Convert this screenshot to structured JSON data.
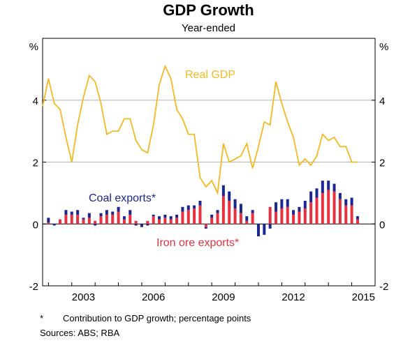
{
  "title": "GDP Growth",
  "subtitle": "Year-ended",
  "footnote_mark": "*",
  "footnote_text": "Contribution to GDP growth; percentage points",
  "sources": "Sources:   ABS; RBA",
  "colors": {
    "real_gdp": "#f5b921",
    "coal": "#1c2690",
    "iron_ore": "#e8303f"
  },
  "chart_data": {
    "type": "line+stacked-bar",
    "ylabel_left": "%",
    "ylabel_right": "%",
    "ylim": [
      -2,
      6
    ],
    "yticks": [
      -2,
      0,
      2,
      4
    ],
    "xlim": [
      2001.75,
      2016.0
    ],
    "xticks": [
      2003,
      2006,
      2009,
      2012,
      2015
    ],
    "xtick_labels": [
      "2003",
      "2006",
      "2009",
      "2012",
      "2015"
    ],
    "grid": "horizontal at 2 and 4",
    "series": [
      {
        "name": "Real GDP",
        "type": "line",
        "x": [
          2001.75,
          2002.0,
          2002.25,
          2002.5,
          2002.75,
          2003.0,
          2003.25,
          2003.5,
          2003.75,
          2004.0,
          2004.25,
          2004.5,
          2004.75,
          2005.0,
          2005.25,
          2005.5,
          2005.75,
          2006.0,
          2006.25,
          2006.5,
          2006.75,
          2007.0,
          2007.25,
          2007.5,
          2007.75,
          2008.0,
          2008.25,
          2008.5,
          2008.75,
          2009.0,
          2009.25,
          2009.5,
          2009.75,
          2010.0,
          2010.25,
          2010.5,
          2010.75,
          2011.0,
          2011.25,
          2011.5,
          2011.75,
          2012.0,
          2012.25,
          2012.5,
          2012.75,
          2013.0,
          2013.25,
          2013.5,
          2013.75,
          2014.0,
          2014.25,
          2014.5,
          2014.75,
          2015.0,
          2015.25
        ],
        "values": [
          3.8,
          4.7,
          3.9,
          3.7,
          2.8,
          2.0,
          3.2,
          4.1,
          4.8,
          4.6,
          3.9,
          2.9,
          3.0,
          3.0,
          3.4,
          3.4,
          2.7,
          2.4,
          2.3,
          3.2,
          4.5,
          5.1,
          4.7,
          3.7,
          3.4,
          2.9,
          2.9,
          1.5,
          1.2,
          1.4,
          1.0,
          2.6,
          2.0,
          2.1,
          2.2,
          2.6,
          1.8,
          2.5,
          3.3,
          3.2,
          4.6,
          3.9,
          3.3,
          2.8,
          1.9,
          2.1,
          1.9,
          2.2,
          2.9,
          2.7,
          2.8,
          2.5,
          2.5,
          2.0,
          2.0
        ]
      },
      {
        "name": "Coal exports*",
        "type": "bar",
        "x": [
          2002.0,
          2002.25,
          2002.5,
          2002.75,
          2003.0,
          2003.25,
          2003.5,
          2003.75,
          2004.0,
          2004.25,
          2004.5,
          2004.75,
          2005.0,
          2005.25,
          2005.5,
          2005.75,
          2006.0,
          2006.25,
          2006.5,
          2006.75,
          2007.0,
          2007.25,
          2007.5,
          2007.75,
          2008.0,
          2008.25,
          2008.5,
          2008.75,
          2009.0,
          2009.25,
          2009.5,
          2009.75,
          2010.0,
          2010.25,
          2010.5,
          2010.75,
          2011.0,
          2011.25,
          2011.5,
          2011.75,
          2012.0,
          2012.25,
          2012.5,
          2012.75,
          2013.0,
          2013.25,
          2013.5,
          2013.75,
          2014.0,
          2014.25,
          2014.5,
          2014.75,
          2015.0,
          2015.25
        ],
        "values": [
          0.15,
          -0.05,
          0.0,
          0.15,
          0.1,
          0.15,
          0.05,
          0.15,
          -0.05,
          0.1,
          0.15,
          0.1,
          0.15,
          0.1,
          0.15,
          -0.05,
          -0.1,
          -0.05,
          0.05,
          0.1,
          0.1,
          0.1,
          0.1,
          0.15,
          0.15,
          0.1,
          0.15,
          -0.05,
          0.1,
          0.1,
          0.35,
          0.3,
          0.3,
          0.3,
          0.15,
          0.1,
          -0.4,
          -0.35,
          -0.15,
          0.3,
          0.3,
          0.25,
          0.15,
          0.15,
          0.25,
          0.35,
          0.3,
          0.4,
          0.3,
          0.25,
          0.2,
          0.2,
          0.25,
          0.1
        ]
      },
      {
        "name": "Iron ore exports*",
        "type": "bar",
        "x": [
          2002.0,
          2002.25,
          2002.5,
          2002.75,
          2003.0,
          2003.25,
          2003.5,
          2003.75,
          2004.0,
          2004.25,
          2004.5,
          2004.75,
          2005.0,
          2005.25,
          2005.5,
          2005.75,
          2006.0,
          2006.25,
          2006.5,
          2006.75,
          2007.0,
          2007.25,
          2007.5,
          2007.75,
          2008.0,
          2008.25,
          2008.5,
          2008.75,
          2009.0,
          2009.25,
          2009.5,
          2009.75,
          2010.0,
          2010.25,
          2010.5,
          2010.75,
          2011.0,
          2011.25,
          2011.5,
          2011.75,
          2012.0,
          2012.25,
          2012.5,
          2012.75,
          2013.0,
          2013.25,
          2013.5,
          2013.75,
          2014.0,
          2014.25,
          2014.5,
          2014.75,
          2015.0,
          2015.25
        ],
        "values": [
          0.05,
          0.0,
          0.15,
          0.3,
          0.3,
          0.3,
          0.15,
          0.2,
          0.1,
          0.25,
          0.3,
          0.3,
          0.4,
          0.15,
          0.3,
          0.1,
          0.0,
          0.1,
          0.25,
          0.15,
          0.2,
          0.15,
          0.2,
          0.4,
          0.45,
          0.5,
          0.6,
          -0.1,
          0.2,
          0.35,
          0.9,
          0.75,
          0.5,
          0.35,
          0.1,
          0.35,
          0.0,
          0.0,
          0.55,
          0.4,
          0.5,
          0.55,
          0.3,
          0.4,
          0.5,
          0.7,
          0.85,
          1.0,
          1.1,
          1.05,
          0.8,
          0.6,
          0.6,
          0.15
        ]
      }
    ],
    "annotations": [
      {
        "text": "Real GDP",
        "series": "Real GDP"
      },
      {
        "text": "Coal exports*",
        "series": "Coal exports*"
      },
      {
        "text": "Iron ore exports*",
        "series": "Iron ore exports*"
      }
    ]
  }
}
